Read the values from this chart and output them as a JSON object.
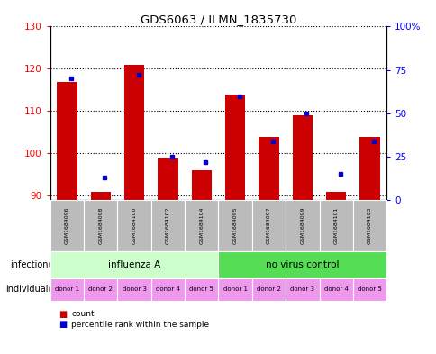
{
  "title": "GDS6063 / ILMN_1835730",
  "samples": [
    "GSM1684096",
    "GSM1684098",
    "GSM1684100",
    "GSM1684102",
    "GSM1684104",
    "GSM1684095",
    "GSM1684097",
    "GSM1684099",
    "GSM1684101",
    "GSM1684103"
  ],
  "counts": [
    117,
    91,
    121,
    99,
    96,
    114,
    104,
    109,
    91,
    104
  ],
  "percentiles": [
    70,
    13,
    72,
    25,
    22,
    60,
    34,
    50,
    15,
    34
  ],
  "ylim_left": [
    89,
    130
  ],
  "ylim_right": [
    0,
    100
  ],
  "yticks_left": [
    90,
    100,
    110,
    120,
    130
  ],
  "yticks_right": [
    0,
    25,
    50,
    75,
    100
  ],
  "ytick_labels_left": [
    "90",
    "100",
    "110",
    "120",
    "130"
  ],
  "ytick_labels_right": [
    "0",
    "25",
    "50",
    "75",
    "100%"
  ],
  "bar_color": "#cc0000",
  "dot_color": "#0000cc",
  "infection_groups": [
    {
      "label": "influenza A",
      "start": 0,
      "end": 5,
      "color": "#ccffcc"
    },
    {
      "label": "no virus control",
      "start": 5,
      "end": 10,
      "color": "#55dd55"
    }
  ],
  "individual_labels": [
    "donor 1",
    "donor 2",
    "donor 3",
    "donor 4",
    "donor 5",
    "donor 1",
    "donor 2",
    "donor 3",
    "donor 4",
    "donor 5"
  ],
  "individual_alt_color": "#dd77dd",
  "individual_base_color": "#ee99ee",
  "sample_bg_color": "#bbbbbb",
  "sample_border_color": "#888888",
  "legend_count_color": "#cc0000",
  "legend_dot_color": "#0000cc",
  "infection_label": "infection",
  "individual_label": "individual",
  "bar_width": 0.6
}
